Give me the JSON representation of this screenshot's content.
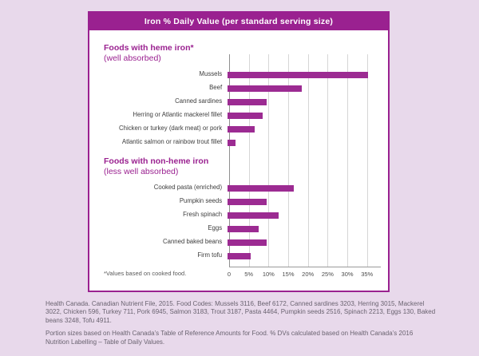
{
  "colors": {
    "page_bg": "#e8d9eb",
    "accent": "#9a2190",
    "bar_color": "#9c2b92",
    "gridline": "#d6d6d6",
    "axis_line": "#9a9a9a"
  },
  "card": {
    "title": "Iron % Daily Value (per standard serving size)"
  },
  "chart_data": {
    "type": "bar",
    "orientation": "horizontal",
    "title": "Iron % Daily Value (per standard serving size)",
    "x_max": 38.5,
    "x_ticks": [
      "0",
      "5%",
      "10%",
      "15%",
      "20%",
      "25%",
      "30%",
      "35%"
    ],
    "x_tick_values": [
      0,
      5,
      10,
      15,
      20,
      25,
      30,
      35
    ],
    "grid": true,
    "bar_color": "#9c2b92",
    "footnote": "*Values based on cooked food.",
    "groups": [
      {
        "heading": "Foods with heme iron*",
        "subheading": "(well absorbed)",
        "items": [
          {
            "label": "Mussels",
            "value": 36
          },
          {
            "label": "Beef",
            "value": 19
          },
          {
            "label": "Canned sardines",
            "value": 10
          },
          {
            "label": "Herring or Atlantic mackerel fillet",
            "value": 9
          },
          {
            "label": "Chicken or turkey (dark meat) or pork",
            "value": 7
          },
          {
            "label": "Atlantic salmon or rainbow trout fillet",
            "value": 2
          }
        ]
      },
      {
        "heading": "Foods with non-heme iron",
        "subheading": "(less well absorbed)",
        "items": [
          {
            "label": "Cooked pasta (enriched)",
            "value": 17
          },
          {
            "label": "Pumpkin seeds",
            "value": 10
          },
          {
            "label": "Fresh spinach",
            "value": 13
          },
          {
            "label": "Eggs",
            "value": 8
          },
          {
            "label": "Canned baked beans",
            "value": 10
          },
          {
            "label": "Firm tofu",
            "value": 6
          }
        ]
      }
    ]
  },
  "footer": {
    "line1": "Health Canada. Canadian Nutrient File, 2015. Food Codes: Mussels 3116, Beef 6172, Canned sardines 3203, Herring 3015, Mackerel 3022, Chicken 596, Turkey 711, Pork 6945, Salmon 3183, Trout 3187, Pasta 4464, Pumpkin seeds 2516, Spinach 2213, Eggs 130, Baked beans 3248, Tofu 4911.",
    "line2": "Portion sizes based on Health Canada’s Table of Reference Amounts for Food. % DVs calculated based on Health Canada’s 2016 Nutrition Labelling – Table of Daily Values."
  }
}
